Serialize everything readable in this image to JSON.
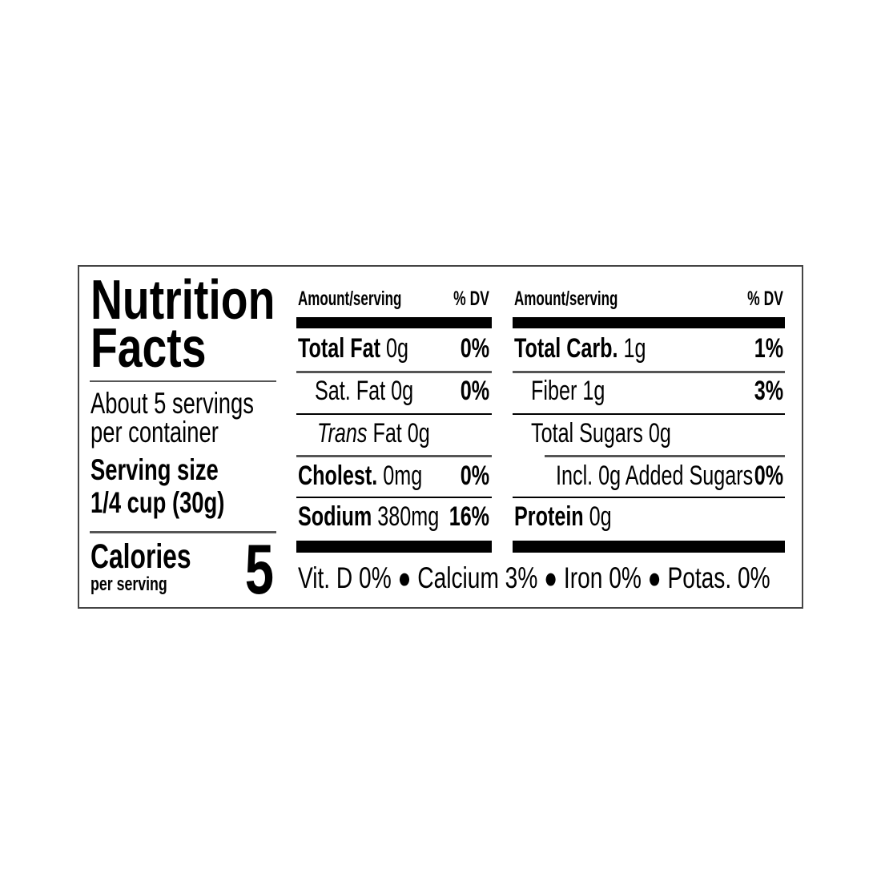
{
  "title_line1": "Nutrition",
  "title_line2": "Facts",
  "servings_line1": "About 5 servings",
  "servings_line2": "per container",
  "serving_size_label": "Serving size",
  "serving_size_value": "1/4 cup (30g)",
  "calories_label": "Calories",
  "calories_sub": "per serving",
  "calories_value": "5",
  "left_table": {
    "header_amount": "Amount/serving",
    "header_dv": "% DV",
    "rows": [
      {
        "name": "Total Fat",
        "amount": "0g",
        "dv": "0%"
      },
      {
        "name": "Sat. Fat",
        "amount": "0g",
        "dv": "0%"
      },
      {
        "name": "Trans",
        "amount": "Fat 0g",
        "dv": ""
      },
      {
        "name": "Cholest.",
        "amount": "0mg",
        "dv": "0%"
      },
      {
        "name": "Sodium",
        "amount": "380mg",
        "dv": "16%"
      }
    ]
  },
  "right_table": {
    "header_amount": "Amount/serving",
    "header_dv": "% DV",
    "rows": [
      {
        "name": "Total Carb.",
        "amount": "1g",
        "dv": "1%"
      },
      {
        "name": "Fiber",
        "amount": "1g",
        "dv": "3%"
      },
      {
        "name": "Total Sugars",
        "amount": "0g",
        "dv": ""
      },
      {
        "name": "Incl. 0g Added Sugars",
        "amount": "",
        "dv": "0%"
      },
      {
        "name": "Protein",
        "amount": "0g",
        "dv": ""
      }
    ]
  },
  "vitamins": "Vit. D 0% ● Calcium 3% ● Iron 0% ● Potas. 0%"
}
